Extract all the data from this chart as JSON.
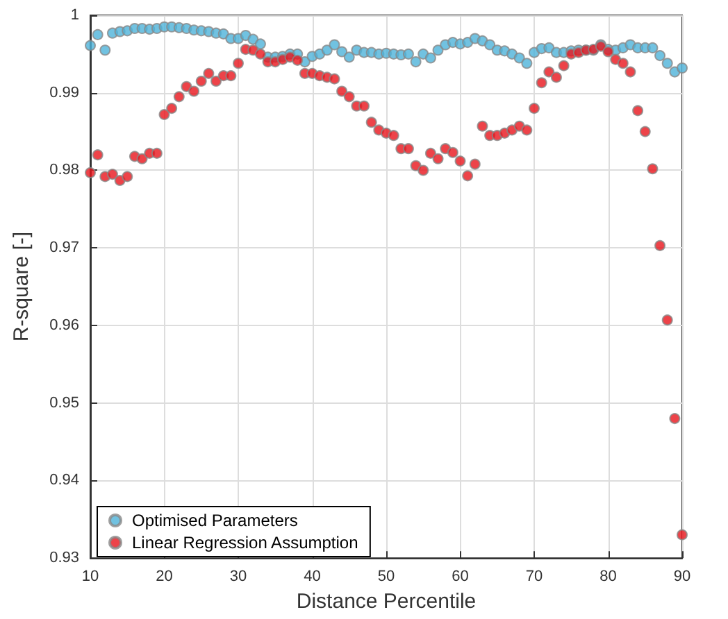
{
  "chart_data": {
    "type": "scatter",
    "xlabel": "Distance Percentile",
    "ylabel": "R-square [-]",
    "x": [
      10,
      11,
      12,
      13,
      14,
      15,
      16,
      17,
      18,
      19,
      20,
      21,
      22,
      23,
      24,
      25,
      26,
      27,
      28,
      29,
      30,
      31,
      32,
      33,
      34,
      35,
      36,
      37,
      38,
      39,
      40,
      41,
      42,
      43,
      44,
      45,
      46,
      47,
      48,
      49,
      50,
      51,
      52,
      53,
      54,
      55,
      56,
      57,
      58,
      59,
      60,
      61,
      62,
      63,
      64,
      65,
      66,
      67,
      68,
      69,
      70,
      71,
      72,
      73,
      74,
      75,
      76,
      77,
      78,
      79,
      80,
      81,
      82,
      83,
      84,
      85,
      86,
      87,
      88,
      89,
      90
    ],
    "series": [
      {
        "name": "Optimised Parameters",
        "color": "#4db3d9",
        "values": [
          0.9961,
          0.9975,
          0.9955,
          0.9977,
          0.9979,
          0.998,
          0.9983,
          0.9983,
          0.9982,
          0.9983,
          0.9985,
          0.9985,
          0.9984,
          0.9983,
          0.9981,
          0.998,
          0.9979,
          0.9977,
          0.9976,
          0.997,
          0.997,
          0.9974,
          0.9969,
          0.9963,
          0.9946,
          0.9946,
          0.9947,
          0.995,
          0.995,
          0.994,
          0.9947,
          0.995,
          0.9955,
          0.9962,
          0.9953,
          0.9946,
          0.9955,
          0.9952,
          0.9952,
          0.995,
          0.9951,
          0.995,
          0.9949,
          0.995,
          0.994,
          0.995,
          0.9945,
          0.9955,
          0.9962,
          0.9965,
          0.9963,
          0.9965,
          0.997,
          0.9967,
          0.9962,
          0.9955,
          0.9954,
          0.995,
          0.9945,
          0.9938,
          0.9952,
          0.9957,
          0.9958,
          0.9952,
          0.9952,
          0.9954,
          0.9955,
          0.9955,
          0.9955,
          0.9962,
          0.9956,
          0.9955,
          0.9958,
          0.9962,
          0.9958,
          0.9958,
          0.9958,
          0.9948,
          0.9938,
          0.9927,
          0.9932
        ]
      },
      {
        "name": "Linear Regression Assumption",
        "color": "#e8141c",
        "values": [
          0.9797,
          0.982,
          0.9792,
          0.9795,
          0.9787,
          0.9792,
          0.9818,
          0.9815,
          0.9822,
          0.9822,
          0.9872,
          0.988,
          0.9895,
          0.9908,
          0.9902,
          0.9915,
          0.9925,
          0.9915,
          0.9922,
          0.9922,
          0.9938,
          0.9956,
          0.9955,
          0.995,
          0.994,
          0.994,
          0.9943,
          0.9946,
          0.9942,
          0.9925,
          0.9925,
          0.9922,
          0.992,
          0.9918,
          0.9902,
          0.9895,
          0.9883,
          0.9883,
          0.9862,
          0.9852,
          0.9848,
          0.9845,
          0.9828,
          0.9828,
          0.9806,
          0.98,
          0.9822,
          0.9815,
          0.9828,
          0.9823,
          0.9812,
          0.9793,
          0.9808,
          0.9857,
          0.9845,
          0.9845,
          0.9848,
          0.9852,
          0.9857,
          0.9852,
          0.988,
          0.9913,
          0.9927,
          0.992,
          0.9935,
          0.995,
          0.9952,
          0.9955,
          0.9956,
          0.996,
          0.9953,
          0.9943,
          0.9938,
          0.9927,
          0.9877,
          0.985,
          0.9802,
          0.9703,
          0.9607,
          0.948,
          0.933
        ]
      }
    ],
    "xlim": [
      10,
      90
    ],
    "xticks": [
      10,
      20,
      30,
      40,
      50,
      60,
      70,
      80,
      90
    ],
    "ylim": [
      0.93,
      1
    ],
    "yticks": [
      0.93,
      0.94,
      0.95,
      0.96,
      0.97,
      0.98,
      0.99,
      1
    ],
    "grid": true,
    "legend": "bottom left",
    "marker": "circle"
  }
}
